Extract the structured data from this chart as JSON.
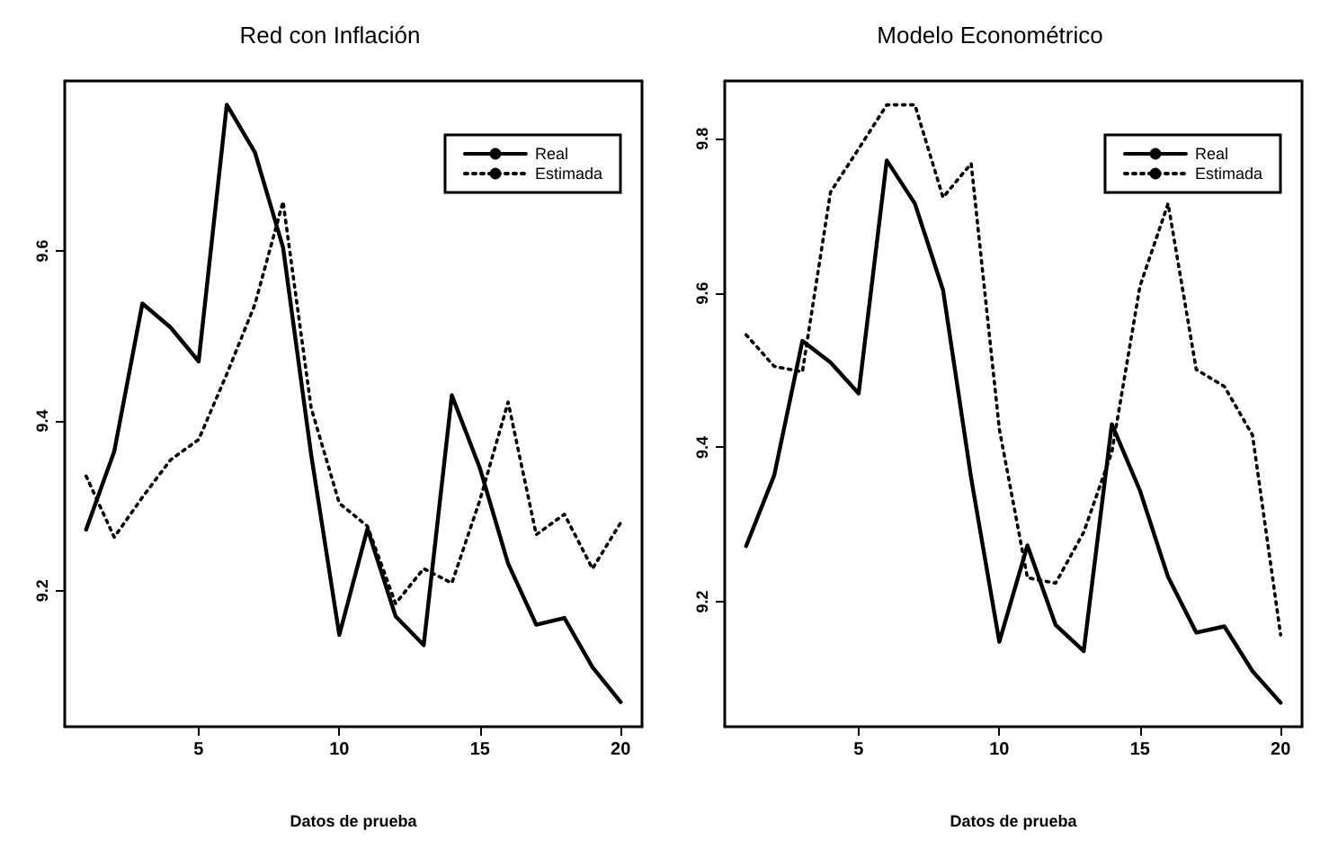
{
  "chart_data": [
    {
      "type": "line",
      "title": "Red con Inflación",
      "xlabel": "Datos de prueba",
      "x": [
        1,
        2,
        3,
        4,
        5,
        6,
        7,
        8,
        9,
        10,
        11,
        12,
        13,
        14,
        15,
        16,
        17,
        18,
        19,
        20
      ],
      "xlim": [
        0.24,
        20.76
      ],
      "xticks": [
        5,
        10,
        15,
        20
      ],
      "ylim": [
        9.04,
        9.8
      ],
      "yticks": [
        9.2,
        9.4,
        9.6
      ],
      "grid": false,
      "legend": "top right",
      "marker": "none",
      "series": [
        {
          "name": "Real",
          "color": "#000000",
          "line_style": "solid",
          "values": [
            9.272,
            9.364,
            9.538,
            9.51,
            9.47,
            9.772,
            9.716,
            9.604,
            9.36,
            9.148,
            9.273,
            9.17,
            9.136,
            9.43,
            9.344,
            9.232,
            9.16,
            9.168,
            9.11,
            9.069
          ]
        },
        {
          "name": "Estimada",
          "color": "#000000",
          "line_style": "dotted",
          "values": [
            9.335,
            9.263,
            9.31,
            9.354,
            9.378,
            9.455,
            9.537,
            9.658,
            9.415,
            9.303,
            9.276,
            9.185,
            9.226,
            9.209,
            9.307,
            9.422,
            9.266,
            9.29,
            9.226,
            9.28
          ]
        }
      ]
    },
    {
      "type": "line",
      "title": "Modelo Econométrico",
      "xlabel": "Datos de prueba",
      "x": [
        1,
        2,
        3,
        4,
        5,
        6,
        7,
        8,
        9,
        10,
        11,
        12,
        13,
        14,
        15,
        16,
        17,
        18,
        19,
        20
      ],
      "xlim": [
        0.24,
        20.76
      ],
      "xticks": [
        5,
        10,
        15,
        20
      ],
      "ylim": [
        9.038,
        9.875
      ],
      "yticks": [
        9.2,
        9.4,
        9.6,
        9.8
      ],
      "grid": false,
      "legend": "top right",
      "marker": "none",
      "series": [
        {
          "name": "Real",
          "color": "#000000",
          "line_style": "solid",
          "values": [
            9.272,
            9.364,
            9.538,
            9.51,
            9.47,
            9.772,
            9.716,
            9.604,
            9.36,
            9.148,
            9.273,
            9.17,
            9.136,
            9.43,
            9.344,
            9.232,
            9.16,
            9.168,
            9.11,
            9.069
          ]
        },
        {
          "name": "Estimada",
          "color": "#000000",
          "line_style": "dotted",
          "values": [
            9.546,
            9.505,
            9.498,
            9.731,
            9.787,
            9.844,
            9.844,
            9.724,
            9.768,
            9.424,
            9.231,
            9.224,
            9.29,
            9.394,
            9.609,
            9.716,
            9.501,
            9.479,
            9.416,
            9.157
          ]
        }
      ]
    }
  ]
}
